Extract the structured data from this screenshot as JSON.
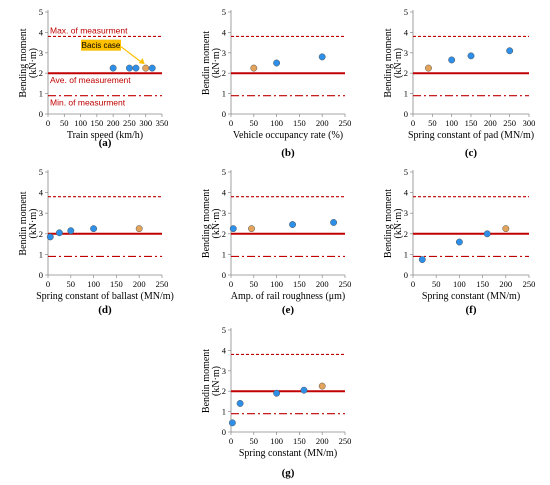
{
  "colors": {
    "max_line": "#c00000",
    "ave_line": "#c00000",
    "min_line": "#c00000",
    "point_blue": "#2e8fe8",
    "point_orange": "#e3a35a",
    "callout_fill": "#ffc000"
  },
  "reference_lines": {
    "max": 3.8,
    "ave": 2.0,
    "min": 0.9
  },
  "annotations": {
    "max": "Max. of measurment",
    "ave": "Ave. of measurement",
    "min": "Min. of measurment",
    "basis": "Bacis case"
  },
  "chart_data": [
    {
      "id": "a",
      "type": "scatter",
      "panel_label": "(a)",
      "xlabel": "Train speed (km/h)",
      "ylabel": "Bending moment",
      "ylabel2": "(kN·m)",
      "xlim": [
        0,
        350
      ],
      "xticks": [
        0,
        50,
        100,
        150,
        200,
        250,
        300,
        350
      ],
      "ylim": [
        0,
        5
      ],
      "yticks": [
        0,
        1,
        2,
        3,
        4,
        5
      ],
      "points": [
        {
          "x": 200,
          "y": 2.25,
          "base": false
        },
        {
          "x": 250,
          "y": 2.25,
          "base": false
        },
        {
          "x": 270,
          "y": 2.25,
          "base": false
        },
        {
          "x": 300,
          "y": 2.25,
          "base": true
        },
        {
          "x": 320,
          "y": 2.25,
          "base": false
        }
      ]
    },
    {
      "id": "b",
      "type": "scatter",
      "panel_label": "(b)",
      "xlabel": "Vehicle occupancy rate (%)",
      "ylabel": "Bendin moment",
      "ylabel2": "(kN·m)",
      "xlim": [
        0,
        250
      ],
      "xticks": [
        0,
        50,
        100,
        150,
        200,
        250
      ],
      "ylim": [
        0,
        5
      ],
      "yticks": [
        0,
        1,
        2,
        3,
        4,
        5
      ],
      "points": [
        {
          "x": 50,
          "y": 2.25,
          "base": true
        },
        {
          "x": 100,
          "y": 2.5,
          "base": false
        },
        {
          "x": 200,
          "y": 2.8,
          "base": false
        }
      ]
    },
    {
      "id": "c",
      "type": "scatter",
      "panel_label": "(c)",
      "xlabel": "Spring constant of pad  (MN/m)",
      "ylabel": "Bending moment",
      "ylabel2": "(kN·m)",
      "xlim": [
        0,
        300
      ],
      "xticks": [
        0,
        50,
        100,
        150,
        200,
        250,
        300
      ],
      "ylim": [
        0,
        5
      ],
      "yticks": [
        0,
        1,
        2,
        3,
        4,
        5
      ],
      "points": [
        {
          "x": 40,
          "y": 2.25,
          "base": true
        },
        {
          "x": 100,
          "y": 2.65,
          "base": false
        },
        {
          "x": 150,
          "y": 2.85,
          "base": false
        },
        {
          "x": 250,
          "y": 3.1,
          "base": false
        }
      ]
    },
    {
      "id": "d",
      "type": "scatter",
      "panel_label": "(d)",
      "xlabel": "Spring constant of ballast (MN/m)",
      "ylabel": "Bendin moment",
      "ylabel2": "(kN·m)",
      "xlim": [
        0,
        250
      ],
      "xticks": [
        0,
        50,
        100,
        150,
        200,
        250
      ],
      "ylim": [
        0,
        5
      ],
      "yticks": [
        0,
        1,
        2,
        3,
        4,
        5
      ],
      "points": [
        {
          "x": 5,
          "y": 1.85,
          "base": false
        },
        {
          "x": 25,
          "y": 2.05,
          "base": false
        },
        {
          "x": 50,
          "y": 2.15,
          "base": false
        },
        {
          "x": 100,
          "y": 2.25,
          "base": false
        },
        {
          "x": 200,
          "y": 2.25,
          "base": true
        }
      ]
    },
    {
      "id": "e",
      "type": "scatter",
      "panel_label": "(e)",
      "xlabel": "Amp. of rail roughness (μm)",
      "ylabel": "Bending moment",
      "ylabel2": "(kN·m)",
      "xlim": [
        0,
        250
      ],
      "xticks": [
        0,
        50,
        100,
        150,
        200,
        250
      ],
      "ylim": [
        0,
        5
      ],
      "yticks": [
        0,
        1,
        2,
        3,
        4,
        5
      ],
      "points": [
        {
          "x": 5,
          "y": 2.25,
          "base": false
        },
        {
          "x": 45,
          "y": 2.25,
          "base": true
        },
        {
          "x": 135,
          "y": 2.45,
          "base": false
        },
        {
          "x": 225,
          "y": 2.55,
          "base": false
        }
      ]
    },
    {
      "id": "f",
      "type": "scatter",
      "panel_label": "(f)",
      "xlabel": "Spring constant (MN/m)",
      "ylabel": "Bending moment",
      "ylabel2": "(kN·m)",
      "xlim": [
        0,
        250
      ],
      "xticks": [
        0,
        50,
        100,
        150,
        200,
        250
      ],
      "ylim": [
        0,
        5
      ],
      "yticks": [
        0,
        1,
        2,
        3,
        4,
        5
      ],
      "points": [
        {
          "x": 20,
          "y": 0.75,
          "base": false
        },
        {
          "x": 100,
          "y": 1.6,
          "base": false
        },
        {
          "x": 160,
          "y": 2.0,
          "base": false
        },
        {
          "x": 200,
          "y": 2.25,
          "base": true
        }
      ]
    },
    {
      "id": "g",
      "type": "scatter",
      "panel_label": "(g)",
      "xlabel": "Spring constant (MN/m)",
      "ylabel": "Bendin moment",
      "ylabel2": "(kN·m)",
      "xlim": [
        0,
        250
      ],
      "xticks": [
        0,
        50,
        100,
        150,
        200,
        250
      ],
      "ylim": [
        0,
        5
      ],
      "yticks": [
        0,
        1,
        2,
        3,
        4,
        5
      ],
      "points": [
        {
          "x": 3,
          "y": 0.45,
          "base": false
        },
        {
          "x": 20,
          "y": 1.4,
          "base": false
        },
        {
          "x": 100,
          "y": 1.9,
          "base": false
        },
        {
          "x": 160,
          "y": 2.05,
          "base": false
        },
        {
          "x": 200,
          "y": 2.25,
          "base": true
        }
      ]
    }
  ]
}
